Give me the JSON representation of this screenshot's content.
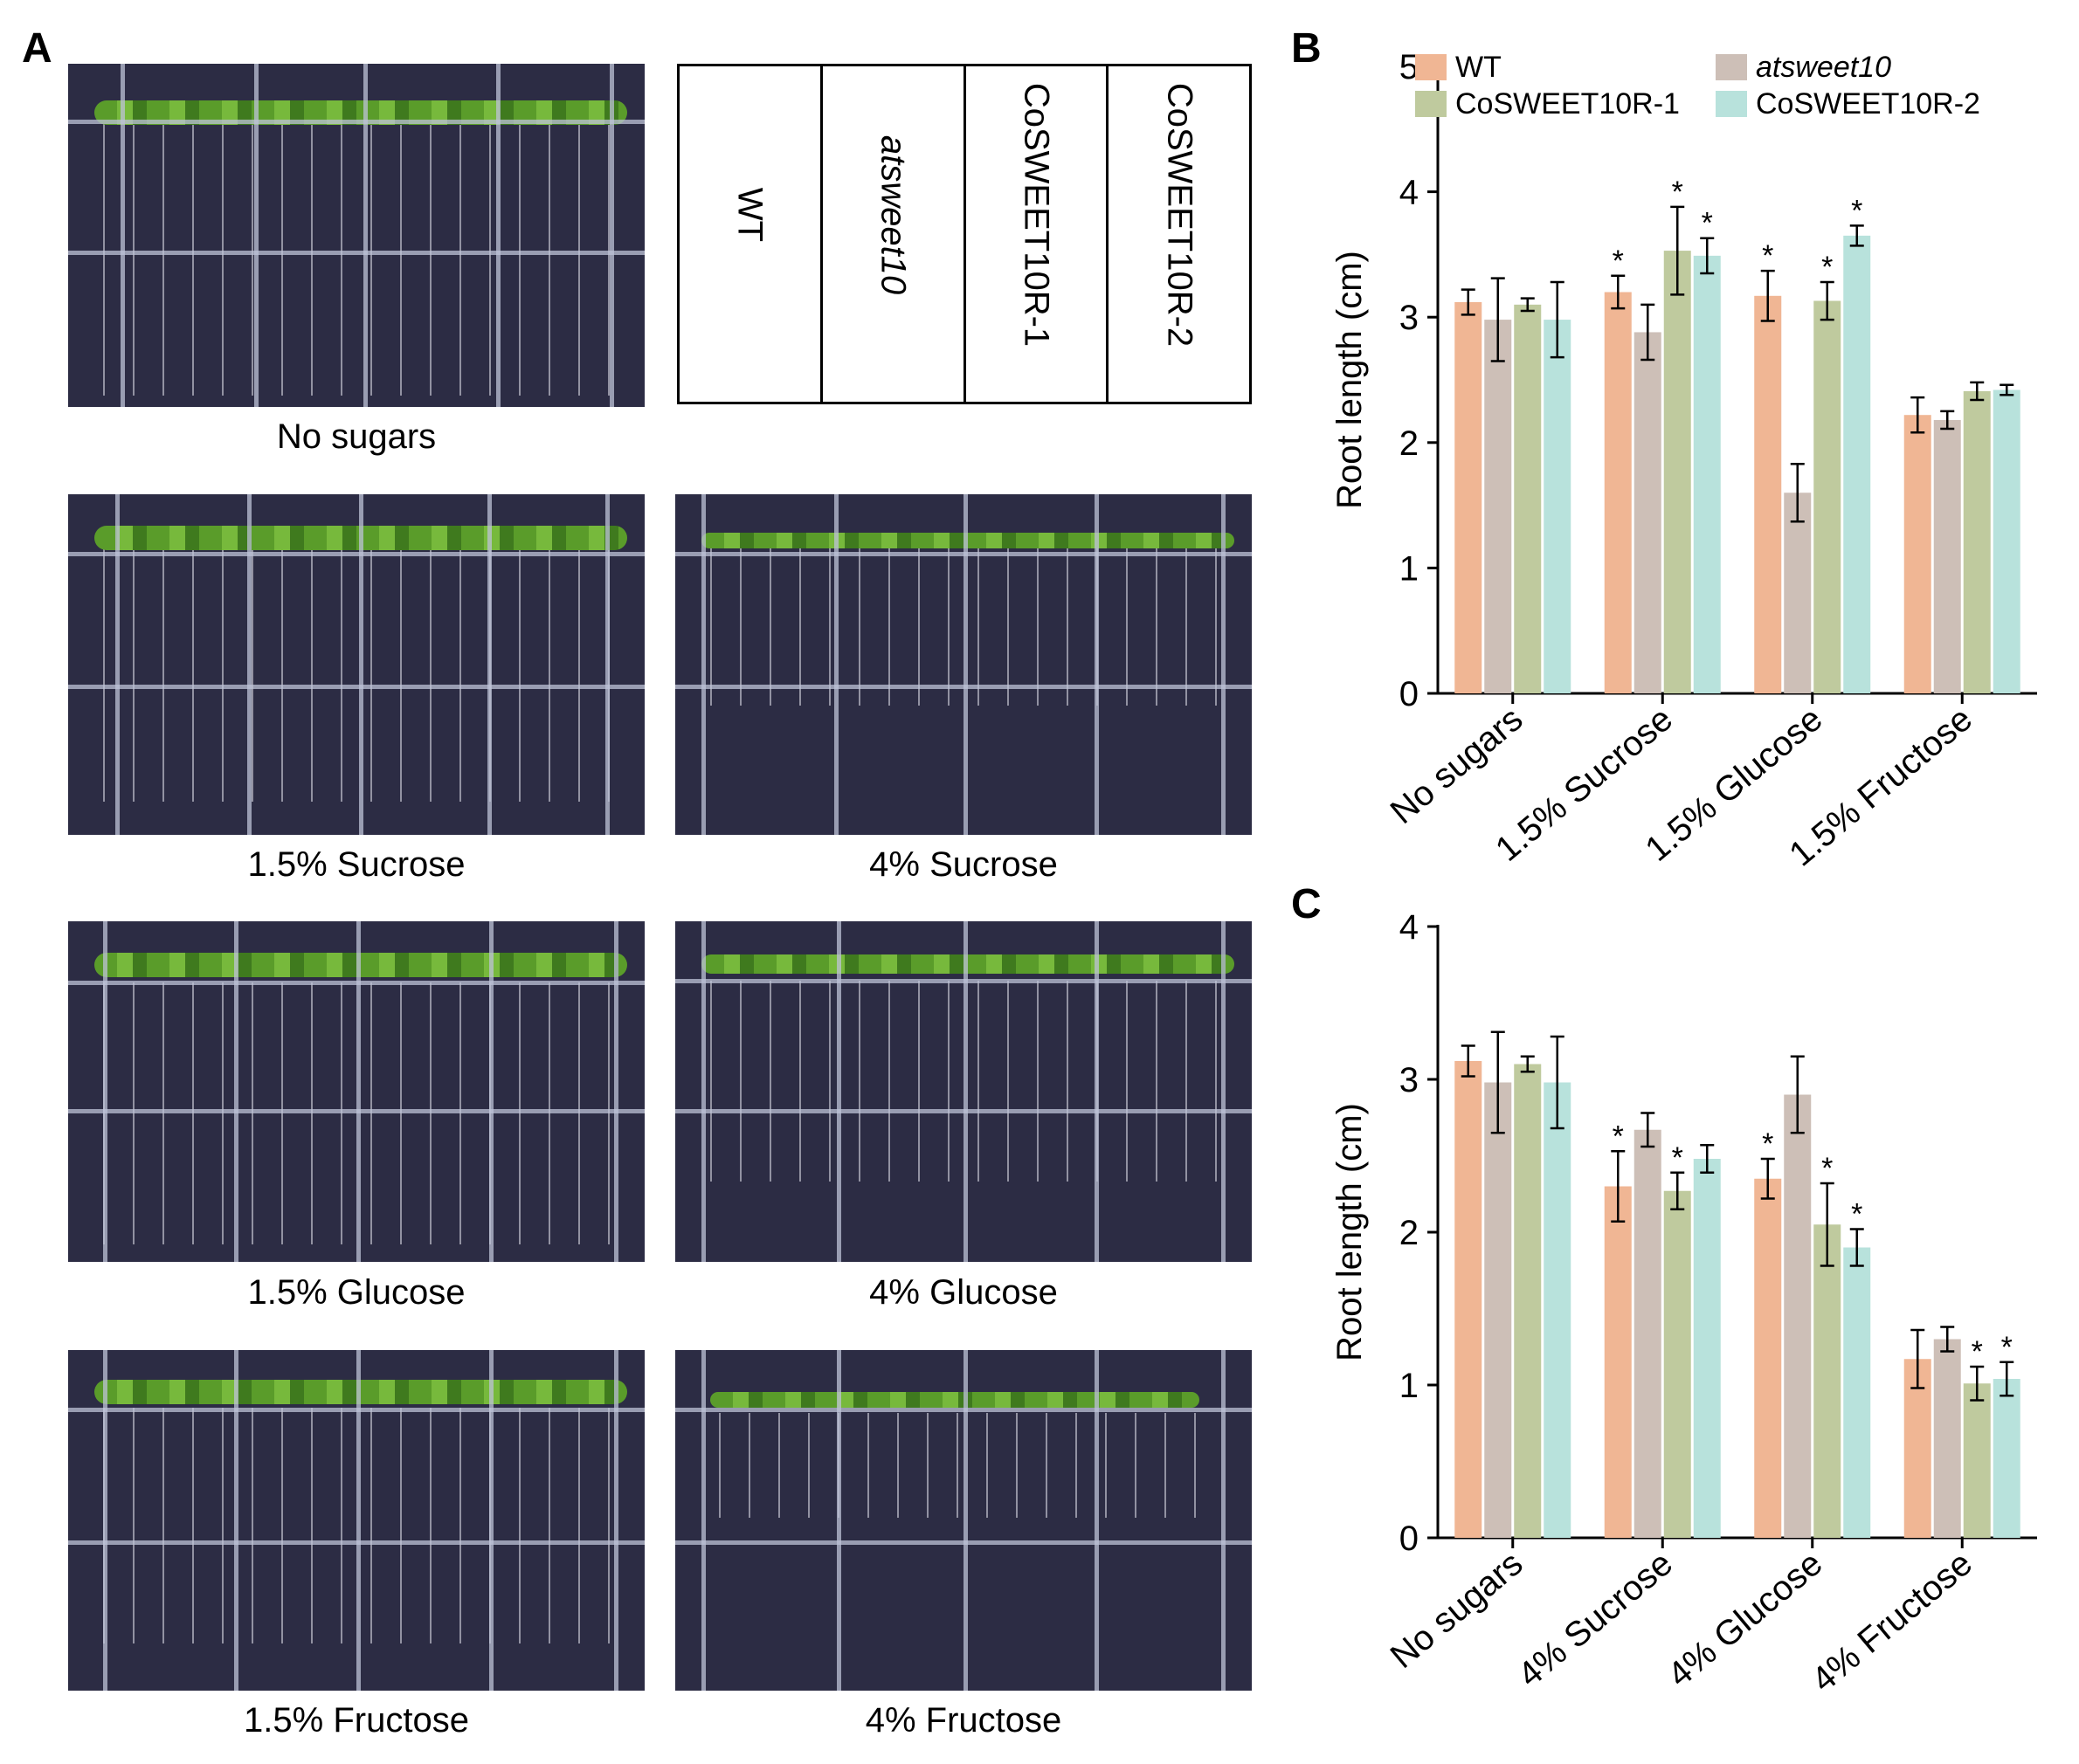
{
  "figure": {
    "panel_labels": {
      "a": "A",
      "b": "B",
      "c": "C"
    },
    "photo_captions": [
      "No sugars",
      "1.5% Sucrose",
      "4% Sucrose",
      "1.5% Glucose",
      "4% Glucose",
      "1.5% Fructose",
      "4% Fructose"
    ],
    "plate_legend": [
      "WT",
      "atsweet10",
      "CoSWEET10R-1",
      "CoSWEET10R-2"
    ],
    "colors": {
      "WT": "#f0b694",
      "atsweet10": "#cdbfb7",
      "CoSWEET10R-1": "#bfca9e",
      "CoSWEET10R-2": "#b8e2dc"
    }
  },
  "chart_data": [
    {
      "type": "bar",
      "panel": "B",
      "title": "",
      "xlabel": "",
      "ylabel": "Root length (cm)",
      "ylim": [
        0,
        5
      ],
      "yticks": [
        "0",
        "1",
        "2",
        "3",
        "4",
        "5"
      ],
      "categories": [
        "No sugars",
        "1.5% Sucrose",
        "1.5% Glucose",
        "1.5% Fructose"
      ],
      "legend": [
        "WT",
        "atsweet10",
        "CoSWEET10R-1",
        "CoSWEET10R-2"
      ],
      "legend_position": "top",
      "significance_mark": "*",
      "series": [
        {
          "name": "WT",
          "color": "#f0b694",
          "values": [
            3.12,
            3.2,
            3.17,
            2.22
          ],
          "errors": [
            0.1,
            0.13,
            0.2,
            0.14
          ],
          "significant": [
            false,
            true,
            true,
            false
          ]
        },
        {
          "name": "atsweet10",
          "color": "#cdbfb7",
          "values": [
            2.98,
            2.88,
            1.6,
            2.18
          ],
          "errors": [
            0.33,
            0.22,
            0.23,
            0.07
          ],
          "significant": [
            false,
            false,
            false,
            false
          ]
        },
        {
          "name": "CoSWEET10R-1",
          "color": "#bfca9e",
          "values": [
            3.1,
            3.53,
            3.13,
            2.41
          ],
          "errors": [
            0.05,
            0.35,
            0.15,
            0.07
          ],
          "significant": [
            false,
            true,
            true,
            false
          ]
        },
        {
          "name": "CoSWEET10R-2",
          "color": "#b8e2dc",
          "values": [
            2.98,
            3.49,
            3.65,
            2.42
          ],
          "errors": [
            0.3,
            0.14,
            0.08,
            0.04
          ],
          "significant": [
            false,
            true,
            true,
            false
          ]
        }
      ]
    },
    {
      "type": "bar",
      "panel": "C",
      "title": "",
      "xlabel": "",
      "ylabel": "Root length (cm)",
      "ylim": [
        0,
        4
      ],
      "yticks": [
        "0",
        "1",
        "2",
        "3",
        "4"
      ],
      "categories": [
        "No sugars",
        "4% Sucrose",
        "4% Glucose",
        "4% Fructose"
      ],
      "legend": [
        "WT",
        "atsweet10",
        "CoSWEET10R-1",
        "CoSWEET10R-2"
      ],
      "legend_position": "none",
      "significance_mark": "*",
      "series": [
        {
          "name": "WT",
          "color": "#f0b694",
          "values": [
            3.12,
            2.3,
            2.35,
            1.17
          ],
          "errors": [
            0.1,
            0.23,
            0.13,
            0.19
          ],
          "significant": [
            false,
            true,
            true,
            false
          ]
        },
        {
          "name": "atsweet10",
          "color": "#cdbfb7",
          "values": [
            2.98,
            2.67,
            2.9,
            1.3
          ],
          "errors": [
            0.33,
            0.11,
            0.25,
            0.08
          ],
          "significant": [
            false,
            false,
            false,
            false
          ]
        },
        {
          "name": "CoSWEET10R-1",
          "color": "#bfca9e",
          "values": [
            3.1,
            2.27,
            2.05,
            1.01
          ],
          "errors": [
            0.05,
            0.12,
            0.27,
            0.11
          ],
          "significant": [
            false,
            true,
            true,
            true
          ]
        },
        {
          "name": "CoSWEET10R-2",
          "color": "#b8e2dc",
          "values": [
            2.98,
            2.48,
            1.9,
            1.04
          ],
          "errors": [
            0.3,
            0.09,
            0.12,
            0.11
          ],
          "significant": [
            false,
            false,
            true,
            true
          ]
        }
      ]
    }
  ]
}
